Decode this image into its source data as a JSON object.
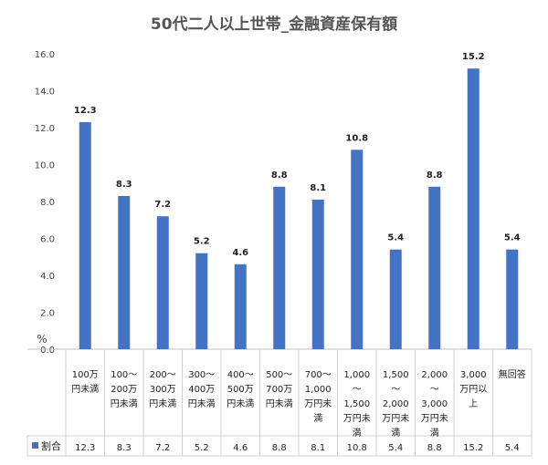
{
  "chart_data": {
    "type": "bar",
    "title": "50代二人以上世帯_金融資産保有額",
    "ylabel": "%",
    "ylim": [
      0,
      16
    ],
    "yticks": [
      "0.0",
      "2.0",
      "4.0",
      "6.0",
      "8.0",
      "10.0",
      "12.0",
      "14.0",
      "16.0"
    ],
    "grid": false,
    "categories": [
      [
        "100万",
        "円未満"
      ],
      [
        "100～",
        "200万",
        "円未満"
      ],
      [
        "200～",
        "300万",
        "円未満"
      ],
      [
        "300～",
        "400万",
        "円未満"
      ],
      [
        "400～",
        "500万",
        "円未満"
      ],
      [
        "500～",
        "700万",
        "円未満"
      ],
      [
        "700～",
        "1,000",
        "万円未",
        "満"
      ],
      [
        "1,000",
        "～",
        "1,500",
        "万円未",
        "満"
      ],
      [
        "1,500",
        "～",
        "2,000",
        "万円未",
        "満"
      ],
      [
        "2,000",
        "～",
        "3,000",
        "万円未",
        "満"
      ],
      [
        "3,000",
        "万円以",
        "上"
      ],
      [
        "無回答"
      ]
    ],
    "series": [
      {
        "name": "割合",
        "color": "#4472C4",
        "values": [
          12.3,
          8.3,
          7.2,
          5.2,
          4.6,
          8.8,
          8.1,
          10.8,
          5.4,
          8.8,
          15.2,
          5.4
        ],
        "labels": [
          "12.3",
          "8.3",
          "7.2",
          "5.2",
          "4.6",
          "8.8",
          "8.1",
          "10.8",
          "5.4",
          "8.8",
          "15.2",
          "5.4"
        ]
      }
    ],
    "legend": "data-table"
  }
}
